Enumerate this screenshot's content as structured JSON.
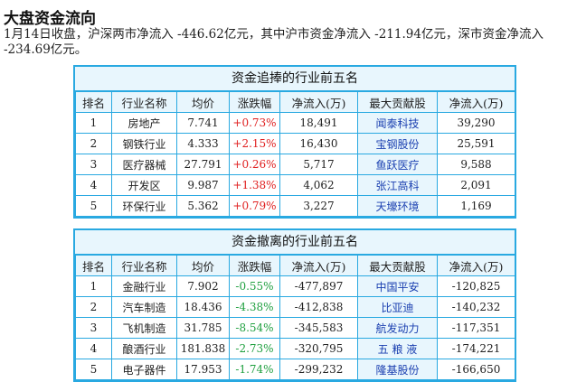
{
  "heading": "大盘资金流向",
  "summary": "1月14日收盘，沪深两市净流入 -446.62亿元，其中沪市资金净流入 -211.94亿元，深市资金净流入 -234.69亿元。",
  "columns": [
    "排名",
    "行业名称",
    "均价",
    "涨跌幅",
    "净流入(万)",
    "最大贡献股",
    "净流入(万)"
  ],
  "inflow": {
    "title": "资金追捧的行业前五名",
    "rows": [
      {
        "rank": "1",
        "industry": "房地产",
        "price": "7.741",
        "change": "+0.73%",
        "net": "18,491",
        "stock": "闻泰科技",
        "stock_net": "39,290"
      },
      {
        "rank": "2",
        "industry": "钢铁行业",
        "price": "4.333",
        "change": "+2.15%",
        "net": "16,430",
        "stock": "宝钢股份",
        "stock_net": "25,591"
      },
      {
        "rank": "3",
        "industry": "医疗器械",
        "price": "27.791",
        "change": "+0.26%",
        "net": "5,717",
        "stock": "鱼跃医疗",
        "stock_net": "9,588"
      },
      {
        "rank": "4",
        "industry": "开发区",
        "price": "9.987",
        "change": "+1.38%",
        "net": "4,062",
        "stock": "张江高科",
        "stock_net": "2,091"
      },
      {
        "rank": "5",
        "industry": "环保行业",
        "price": "5.362",
        "change": "+0.79%",
        "net": "3,227",
        "stock": "天壕环境",
        "stock_net": "1,169"
      }
    ]
  },
  "outflow": {
    "title": "资金撤离的行业前五名",
    "rows": [
      {
        "rank": "1",
        "industry": "金融行业",
        "price": "7.902",
        "change": "-0.55%",
        "net": "-477,897",
        "stock": "中国平安",
        "stock_net": "-120,825"
      },
      {
        "rank": "2",
        "industry": "汽车制造",
        "price": "18.436",
        "change": "-4.38%",
        "net": "-412,838",
        "stock": "比亚迪",
        "stock_net": "-140,232"
      },
      {
        "rank": "3",
        "industry": "飞机制造",
        "price": "31.785",
        "change": "-8.54%",
        "net": "-345,583",
        "stock": "航发动力",
        "stock_net": "-117,351"
      },
      {
        "rank": "4",
        "industry": "酿酒行业",
        "price": "181.838",
        "change": "-2.73%",
        "net": "-320,795",
        "stock": "五 粮 液",
        "stock_net": "-174,221"
      },
      {
        "rank": "5",
        "industry": "电子器件",
        "price": "17.953",
        "change": "-1.74%",
        "net": "-299,232",
        "stock": "隆基股份",
        "stock_net": "-166,650"
      }
    ]
  }
}
